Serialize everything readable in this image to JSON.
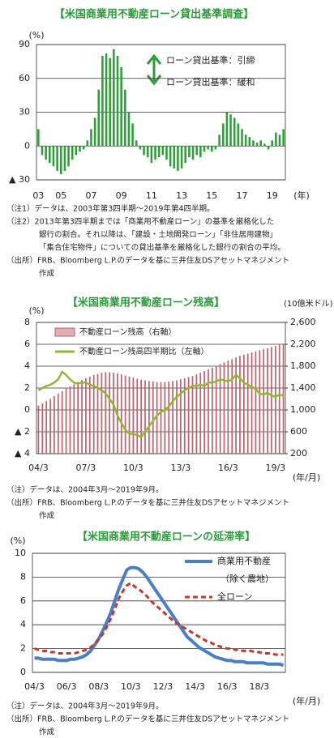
{
  "chart_data": [
    {
      "type": "bar",
      "title": "【米国商業用不動産ローン貸出基準調査】",
      "y_label": "(%)",
      "x_label": "(年)",
      "annotations": [
        "ローン貸出基準：引締",
        "ローン貸出基準：緩和"
      ],
      "categories": [
        "03",
        null,
        null,
        null,
        null,
        null,
        "05",
        null,
        null,
        null,
        null,
        null,
        null,
        null,
        "07",
        null,
        null,
        null,
        null,
        null,
        null,
        null,
        "09",
        null,
        null,
        null,
        null,
        null,
        null,
        null,
        "11",
        null,
        null,
        null,
        null,
        null,
        null,
        null,
        "13",
        null,
        null,
        null,
        null,
        null,
        null,
        null,
        "15",
        null,
        null,
        null,
        null,
        null,
        null,
        null,
        "17",
        null,
        null,
        null,
        null,
        null,
        null,
        null,
        "19",
        null,
        null,
        null
      ],
      "values": [
        15,
        -8,
        -12,
        -15,
        -18,
        -22,
        -25,
        -22,
        -18,
        -12,
        -8,
        -5,
        -3,
        5,
        15,
        25,
        50,
        80,
        82,
        78,
        86,
        80,
        70,
        50,
        30,
        20,
        5,
        -3,
        -8,
        -10,
        -15,
        -12,
        -10,
        -8,
        -12,
        -18,
        -20,
        -22,
        -20,
        -15,
        -10,
        -12,
        -8,
        -10,
        -5,
        -3,
        -5,
        -3,
        10,
        20,
        30,
        28,
        25,
        20,
        15,
        10,
        8,
        5,
        3,
        5,
        2,
        -3,
        5,
        12,
        10,
        15
      ],
      "color": "#2f9e3a",
      "ylim": [
        -30,
        90
      ],
      "yticks": [
        {
          "value": -30,
          "label": "▲ 30"
        },
        0,
        30,
        60,
        90
      ],
      "grid": true,
      "notes": [
        "（注1）データは、2003年第3四半期～2019年第4四半期。",
        "（注2）2013年第3四半期までは「商業用不動産ローン」の基準を厳格化した",
        "銀行の割合。それ以降は、「建設・土地開発ローン」「非住居用建物」",
        "「集合住宅物件」についての貸出基準を厳格化した銀行の割合の平均。",
        "（出所）FRB、Bloomberg L.P.のデータを基に三井住友DSアセットマネジメント",
        "作成"
      ]
    },
    {
      "type": "combo",
      "title": "【米国商業用不動産ローン残高】",
      "y_label": "(%)",
      "y2_label": "(10億米ドル)",
      "x_label": "(年/月)",
      "categories": [
        "04/3",
        null,
        null,
        null,
        null,
        null,
        null,
        null,
        null,
        null,
        null,
        null,
        "07/3",
        null,
        null,
        null,
        null,
        null,
        null,
        null,
        null,
        null,
        null,
        null,
        "10/3",
        null,
        null,
        null,
        null,
        null,
        null,
        null,
        null,
        null,
        null,
        null,
        "13/3",
        null,
        null,
        null,
        null,
        null,
        null,
        null,
        null,
        null,
        null,
        null,
        "16/3",
        null,
        null,
        null,
        null,
        null,
        null,
        null,
        null,
        null,
        null,
        null,
        "19/3",
        null,
        null
      ],
      "series": [
        {
          "name": "不動産ローン残高（右軸）",
          "type": "bar",
          "axis": "y2",
          "color": "#c0606c",
          "values": [
            1080,
            1120,
            1160,
            1200,
            1250,
            1300,
            1340,
            1390,
            1430,
            1470,
            1510,
            1550,
            1580,
            1610,
            1640,
            1660,
            1680,
            1690,
            1690,
            1680,
            1670,
            1650,
            1630,
            1610,
            1590,
            1570,
            1550,
            1540,
            1530,
            1520,
            1510,
            1510,
            1510,
            1520,
            1530,
            1540,
            1560,
            1580,
            1600,
            1620,
            1650,
            1680,
            1710,
            1740,
            1770,
            1800,
            1840,
            1870,
            1900,
            1930,
            1960,
            1990,
            2010,
            2030,
            2050,
            2070,
            2090,
            2110,
            2130,
            2150,
            2170,
            2190,
            2210
          ]
        },
        {
          "name": "不動産ローン残高四半期比（左軸）",
          "type": "line",
          "color": "#8cb832",
          "values": [
            1.8,
            2.0,
            2.2,
            2.3,
            2.5,
            2.8,
            3.5,
            3.2,
            2.8,
            2.5,
            2.4,
            2.5,
            2.5,
            2.3,
            2.2,
            2.0,
            1.8,
            1.5,
            1.0,
            0.5,
            -0.5,
            -1.2,
            -1.8,
            -2.2,
            -2.2,
            -2.3,
            -2.5,
            -2.0,
            -1.5,
            -1.0,
            -0.5,
            -0.2,
            0.0,
            0.3,
            0.8,
            1.2,
            1.5,
            1.8,
            2.0,
            2.2,
            2.2,
            2.3,
            2.2,
            2.5,
            2.5,
            2.6,
            2.8,
            2.7,
            2.6,
            2.8,
            3.2,
            2.9,
            2.5,
            2.3,
            2.1,
            1.9,
            1.5,
            1.4,
            1.6,
            1.3,
            1.2,
            1.4,
            1.3
          ]
        }
      ],
      "ylim": [
        -4,
        8
      ],
      "yticks": [
        {
          "value": -4,
          "label": "▲ 4"
        },
        {
          "value": -2,
          "label": "▲ 2"
        },
        0,
        2,
        4,
        6,
        8
      ],
      "y2lim": [
        200,
        2600
      ],
      "y2ticks": [
        200,
        600,
        {
          "value": 1000,
          "label": "1,000"
        },
        {
          "value": 1400,
          "label": "1,400"
        },
        {
          "value": 1800,
          "label": "1,800"
        },
        {
          "value": 2200,
          "label": "2,200"
        },
        {
          "value": 2600,
          "label": "2,600"
        }
      ],
      "grid": true,
      "notes": [
        "（注）データは、2004年3月～2019年9月。",
        "（出所）FRB、Bloomberg L.P.のデータを基に三井住友DSアセットマネジメント",
        "作成"
      ]
    },
    {
      "type": "line",
      "title": "【米国商業用不動産ローンの延滞率】",
      "y_label": "(%)",
      "x_label": "(年/月)",
      "legend_note": "（除く農地）",
      "categories": [
        "04/3",
        null,
        null,
        null,
        null,
        null,
        null,
        null,
        "06/3",
        null,
        null,
        null,
        null,
        null,
        null,
        null,
        "08/3",
        null,
        null,
        null,
        null,
        null,
        null,
        null,
        "10/3",
        null,
        null,
        null,
        null,
        null,
        null,
        null,
        "12/3",
        null,
        null,
        null,
        null,
        null,
        null,
        null,
        "14/3",
        null,
        null,
        null,
        null,
        null,
        null,
        null,
        "16/3",
        null,
        null,
        null,
        null,
        null,
        null,
        null,
        "18/3",
        null,
        null,
        null,
        null,
        null,
        null
      ],
      "series": [
        {
          "name": "商業用不動産",
          "color": "#4a7fc4",
          "values": [
            1.2,
            1.2,
            1.1,
            1.1,
            1.1,
            1.1,
            1.0,
            1.0,
            1.0,
            1.1,
            1.1,
            1.2,
            1.3,
            1.5,
            1.8,
            2.3,
            2.8,
            3.5,
            4.2,
            5.0,
            6.0,
            7.0,
            7.8,
            8.6,
            8.8,
            8.8,
            8.7,
            8.4,
            8.0,
            7.5,
            7.0,
            6.5,
            6.0,
            5.5,
            5.0,
            4.5,
            4.0,
            3.5,
            3.0,
            2.7,
            2.4,
            2.1,
            1.9,
            1.7,
            1.5,
            1.3,
            1.2,
            1.1,
            1.0,
            1.0,
            0.9,
            0.9,
            0.9,
            0.8,
            0.8,
            0.8,
            0.8,
            0.8,
            0.7,
            0.7,
            0.7,
            0.7,
            0.6
          ]
        },
        {
          "name": "全ローン",
          "color": "#c0392b",
          "dashed": true,
          "values": [
            2.0,
            1.9,
            1.8,
            1.8,
            1.7,
            1.7,
            1.6,
            1.6,
            1.6,
            1.6,
            1.6,
            1.7,
            1.8,
            1.9,
            2.1,
            2.4,
            2.8,
            3.2,
            3.8,
            4.5,
            5.3,
            6.2,
            6.8,
            7.3,
            7.5,
            7.2,
            7.0,
            6.7,
            6.4,
            6.0,
            5.7,
            5.4,
            5.1,
            4.8,
            4.5,
            4.2,
            4.0,
            3.8,
            3.6,
            3.4,
            3.2,
            3.0,
            2.8,
            2.6,
            2.5,
            2.3,
            2.2,
            2.1,
            2.0,
            2.0,
            1.9,
            1.9,
            1.8,
            1.8,
            1.8,
            1.7,
            1.7,
            1.6,
            1.6,
            1.6,
            1.5,
            1.5,
            1.5
          ]
        }
      ],
      "ylim": [
        0,
        10
      ],
      "yticks": [
        0,
        2,
        4,
        6,
        8,
        10
      ],
      "grid": true,
      "notes": [
        "（注）データは、2004年3月～2019年9月。",
        "（出所）FRB、Bloomberg L.P.のデータを基に三井住友DSアセットマネジメント",
        "作成"
      ]
    }
  ]
}
